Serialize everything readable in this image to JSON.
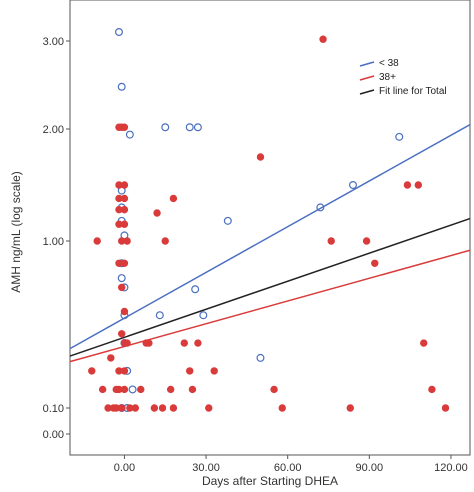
{
  "chart_data": {
    "type": "scatter",
    "xlabel": "Days after Starting DHEA",
    "ylabel": "AMH ng/mL (log scale)",
    "x_ticks": [
      0,
      30,
      60,
      90,
      120
    ],
    "x_tick_labels": [
      "0.00",
      "30.00",
      "60.00",
      "90.00",
      "120.00"
    ],
    "y_ticks": [
      0,
      0.1,
      1.0,
      2.0,
      3.0
    ],
    "y_tick_labels": [
      "0.00",
      "0.10",
      "1.00",
      "2.00",
      "3.00"
    ],
    "xlim": [
      -20,
      127
    ],
    "legend_position": "top-right",
    "legend": [
      {
        "label": "< 38",
        "color": "#4a6fc1"
      },
      {
        "label": "38+",
        "color": "#d93a3a"
      },
      {
        "label": "Fit line for Total",
        "color": "#222222"
      }
    ],
    "series": [
      {
        "name": "< 38",
        "color": "#4a6fc1",
        "marker": "open-circle",
        "points": [
          [
            -2,
            3.1
          ],
          [
            -1,
            2.48
          ],
          [
            2,
            1.95
          ],
          [
            -1,
            1.45
          ],
          [
            -1,
            1.3
          ],
          [
            -1,
            1.18
          ],
          [
            0,
            1.05
          ],
          [
            -1,
            0.88
          ],
          [
            -1,
            0.8
          ],
          [
            0,
            0.75
          ],
          [
            0,
            0.6
          ],
          [
            0,
            0.45
          ],
          [
            1,
            0.3
          ],
          [
            3,
            0.2
          ],
          [
            -1,
            0.1
          ],
          [
            1,
            0.1
          ],
          [
            13,
            0.6
          ],
          [
            15,
            2.02
          ],
          [
            24,
            2.02
          ],
          [
            27,
            2.02
          ],
          [
            26,
            0.74
          ],
          [
            29,
            0.6
          ],
          [
            38,
            1.18
          ],
          [
            50,
            0.37
          ],
          [
            72,
            1.3
          ],
          [
            84,
            1.5
          ],
          [
            101,
            1.93
          ]
        ]
      },
      {
        "name": "38+",
        "color": "#d93a3a",
        "marker": "filled-circle",
        "points": [
          [
            -10,
            1.0
          ],
          [
            -12,
            0.3
          ],
          [
            -8,
            0.2
          ],
          [
            -6,
            0.1
          ],
          [
            -5,
            0.37
          ],
          [
            -4,
            0.1
          ],
          [
            -3,
            0.2
          ],
          [
            -2,
            2.02
          ],
          [
            -1,
            2.02
          ],
          [
            0,
            2.02
          ],
          [
            -2,
            1.5
          ],
          [
            0,
            1.5
          ],
          [
            -2,
            1.38
          ],
          [
            0,
            1.38
          ],
          [
            -2,
            1.28
          ],
          [
            0,
            1.28
          ],
          [
            -2,
            1.15
          ],
          [
            0,
            1.15
          ],
          [
            -1,
            1.0
          ],
          [
            1,
            1.0
          ],
          [
            -2,
            0.88
          ],
          [
            0,
            0.88
          ],
          [
            -1,
            0.75
          ],
          [
            0,
            0.62
          ],
          [
            -1,
            0.5
          ],
          [
            0,
            0.45
          ],
          [
            1,
            0.45
          ],
          [
            -2,
            0.3
          ],
          [
            0,
            0.3
          ],
          [
            -2,
            0.2
          ],
          [
            0,
            0.2
          ],
          [
            -3,
            0.1
          ],
          [
            -1,
            0.1
          ],
          [
            2,
            0.1
          ],
          [
            4,
            0.1
          ],
          [
            6,
            0.2
          ],
          [
            8,
            0.45
          ],
          [
            9,
            0.45
          ],
          [
            11,
            0.1
          ],
          [
            12,
            1.25
          ],
          [
            14,
            0.1
          ],
          [
            15,
            1.0
          ],
          [
            17,
            0.2
          ],
          [
            18,
            1.38
          ],
          [
            18,
            0.1
          ],
          [
            22,
            0.45
          ],
          [
            24,
            0.3
          ],
          [
            25,
            0.2
          ],
          [
            27,
            0.45
          ],
          [
            31,
            0.1
          ],
          [
            33,
            0.3
          ],
          [
            50,
            1.75
          ],
          [
            55,
            0.2
          ],
          [
            58,
            0.1
          ],
          [
            73,
            3.02
          ],
          [
            76,
            1.0
          ],
          [
            83,
            0.1
          ],
          [
            89,
            1.0
          ],
          [
            92,
            0.88
          ],
          [
            104,
            1.5
          ],
          [
            108,
            1.5
          ],
          [
            110,
            0.45
          ],
          [
            113,
            0.2
          ],
          [
            118,
            0.1
          ]
        ]
      }
    ],
    "fit_lines": [
      {
        "name": "< 38",
        "color": "#4a6fc1",
        "points": [
          [
            -20,
            0.42
          ],
          [
            127,
            2.05
          ]
        ]
      },
      {
        "name": "38+",
        "color": "#d93a3a",
        "points": [
          [
            -20,
            0.35
          ],
          [
            127,
            0.95
          ]
        ]
      },
      {
        "name": "Fit line for Total",
        "color": "#222222",
        "points": [
          [
            -20,
            0.38
          ],
          [
            127,
            1.2
          ]
        ]
      }
    ]
  }
}
